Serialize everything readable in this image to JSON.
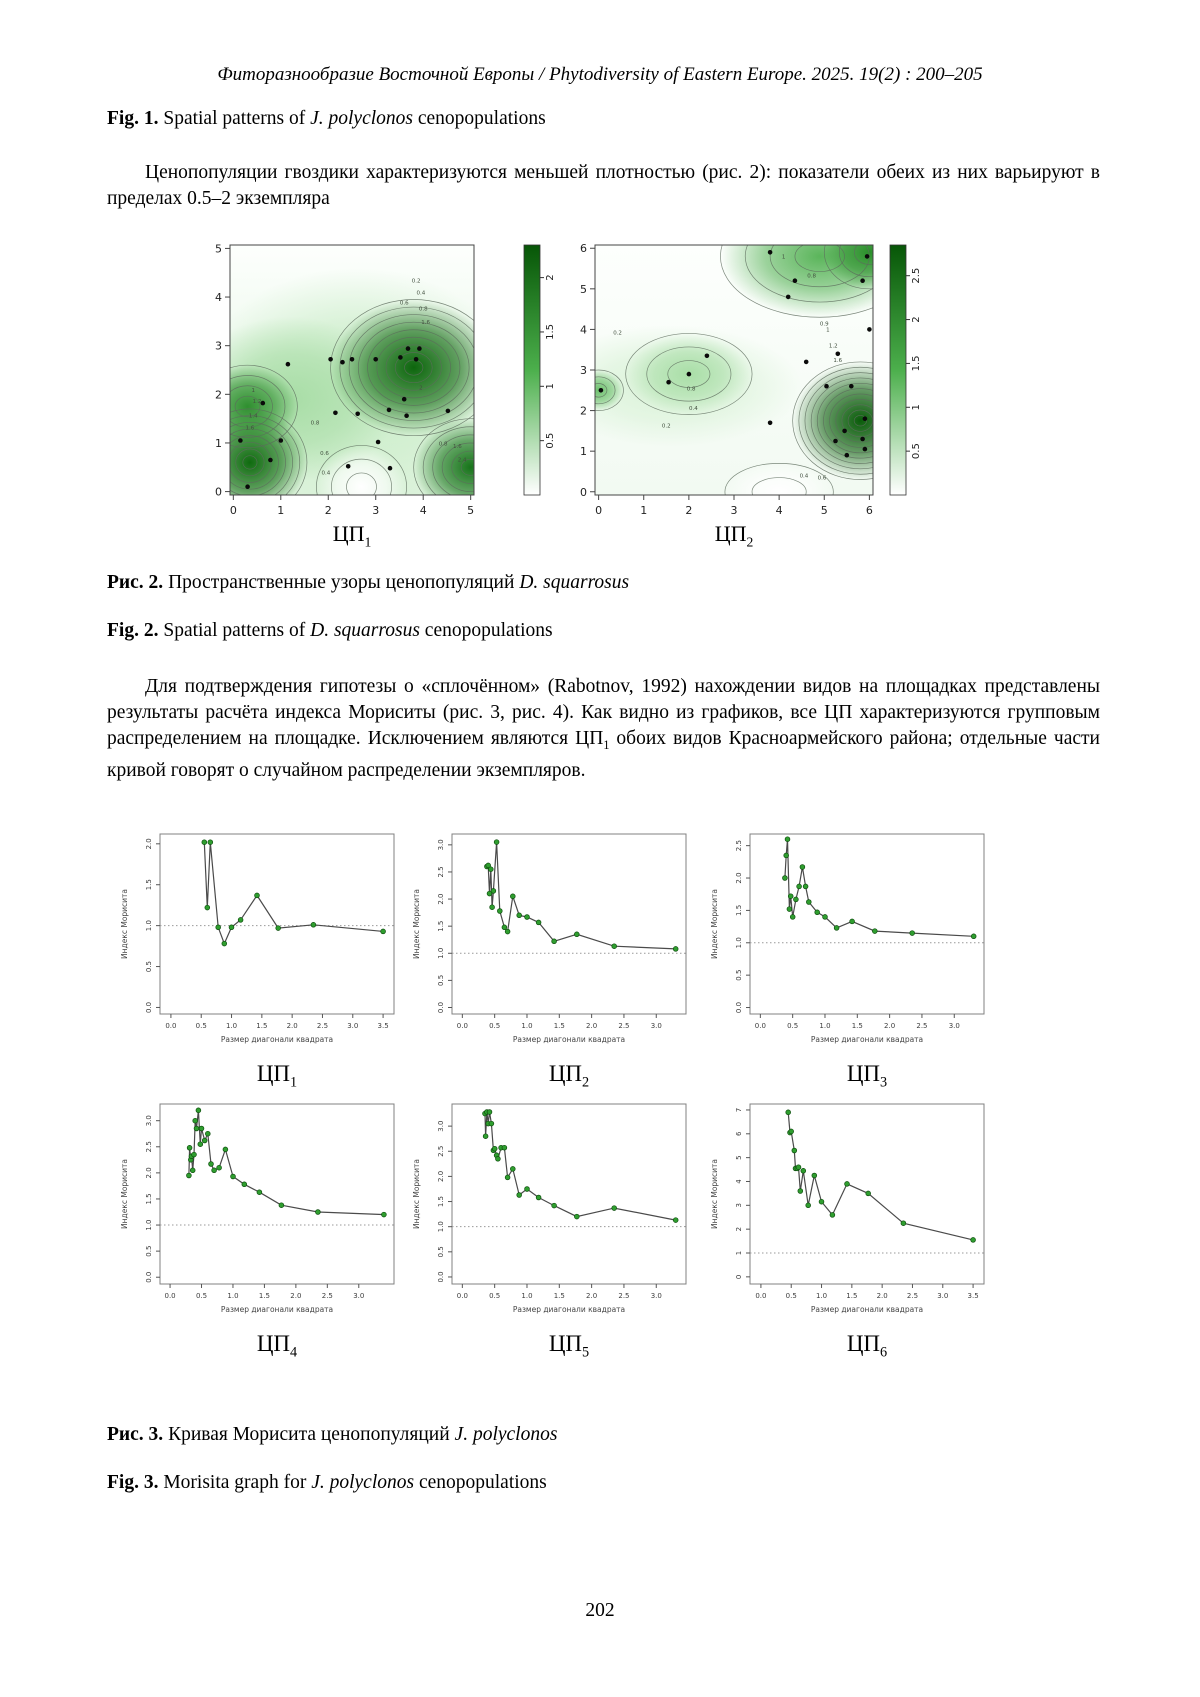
{
  "page": {
    "header": "Фиторазнообразие Восточной Европы / Phytodiversity of Eastern Europe. 2025. 19(2) : 200–205",
    "page_number": "202"
  },
  "captions": {
    "fig1_en": {
      "prefix": "Fig. 1.",
      "pre": " Spatial patterns of ",
      "italic": "J. polyclonos",
      "suffix": " cenopopulations"
    },
    "fig2_ru": {
      "prefix": "Рис. 2.",
      "pre": " Пространственные узоры ценопопуляций ",
      "italic": "D. squarrosus",
      "suffix": ""
    },
    "fig2_en": {
      "prefix": "Fig. 2.",
      "pre": " Spatial patterns of ",
      "italic": "D. squarrosus",
      "suffix": " cenopopulations"
    },
    "fig3_ru": {
      "prefix": "Рис. 3.",
      "pre": " Кривая Морисита ценопопуляций ",
      "italic": "J. polyclonos",
      "suffix": ""
    },
    "fig3_en": {
      "prefix": "Fig. 3.",
      "pre": " Morisita graph for ",
      "italic": "J. polyclonos",
      "suffix": " cenopopulations"
    }
  },
  "paragraphs": {
    "p1": "Ценопопуляции гвоздики характеризуются меньшей плотностью (рис. 2): показатели обеих из них варьируют в пределах 0.5–2 экземпляра",
    "p2a": "Для подтверждения гипотезы о «сплочённом» (Rabotnov, 1992) нахождении видов на площадках представлены результаты расчёта индекса Мориситы (рис. 3, рис. 4). Как видно из графиков, все ЦП характеризуются групповым распределением на площадке. Исключением являются ЦП",
    "p2sub": "1",
    "p2b": " обоих видов Красноармейского района; отдельные части кривой говорят о случайном распределении экземпляров."
  },
  "chart_data": [
    {
      "id": "cpa",
      "type": "heatmap",
      "subtype": "contour-density",
      "title": {
        "base": "ЦП",
        "sub": "1"
      },
      "xlim": [
        -0.07,
        5.07
      ],
      "ylim": [
        -0.07,
        5.07
      ],
      "xticks": [
        0,
        1,
        2,
        3,
        4,
        5
      ],
      "yticks": [
        0,
        1,
        2,
        3,
        4,
        5
      ],
      "colorbar_ticks": [
        0.5,
        1,
        1.5,
        2
      ],
      "colorbar_max": 2.3,
      "colorbar_colors": [
        "#ffffff",
        "#4caf4c",
        "#075607"
      ],
      "base_top": "#fdfffd",
      "base_bottom": "#ddf3dc",
      "points": [
        [
          0.15,
          1.05
        ],
        [
          0.3,
          0.1
        ],
        [
          0.78,
          0.65
        ],
        [
          1.0,
          1.05
        ],
        [
          0.62,
          1.82
        ],
        [
          1.15,
          2.62
        ],
        [
          2.05,
          2.72
        ],
        [
          2.3,
          2.66
        ],
        [
          2.5,
          2.72
        ],
        [
          2.15,
          1.62
        ],
        [
          2.42,
          0.52
        ],
        [
          3.0,
          2.72
        ],
        [
          3.28,
          1.68
        ],
        [
          3.05,
          1.02
        ],
        [
          3.3,
          0.48
        ],
        [
          3.52,
          2.76
        ],
        [
          3.68,
          2.94
        ],
        [
          3.92,
          2.94
        ],
        [
          3.85,
          2.72
        ],
        [
          3.6,
          1.9
        ],
        [
          3.65,
          1.56
        ],
        [
          4.52,
          1.66
        ],
        [
          2.62,
          1.6
        ]
      ],
      "blobs": [
        {
          "cx": 2.6,
          "cy": 2.1,
          "rx": 3.4,
          "ry": 2.5,
          "color": "#c9ecc7",
          "rings": 0
        },
        {
          "cx": 1.2,
          "cy": 1.9,
          "rx": 2.3,
          "ry": 1.7,
          "color": "#a8dda6",
          "rings": 0
        },
        {
          "cx": 3.8,
          "cy": 2.55,
          "rx": 1.75,
          "ry": 1.4,
          "color": "#0d660d",
          "rings": 9
        },
        {
          "cx": 0.35,
          "cy": 0.6,
          "rx": 1.2,
          "ry": 1.1,
          "color": "#0f6b0f",
          "rings": 8
        },
        {
          "cx": 0.3,
          "cy": 1.75,
          "rx": 1.05,
          "ry": 0.85,
          "color": "#2f8f2f",
          "rings": 4
        },
        {
          "cx": 5.0,
          "cy": 0.5,
          "rx": 1.2,
          "ry": 1.0,
          "color": "#17741a",
          "rings": 6
        },
        {
          "cx": 2.7,
          "cy": 0.1,
          "rx": 0.95,
          "ry": 0.85,
          "color": "#ffffff",
          "rings": 3
        }
      ],
      "ring_labels": [
        {
          "t": "0.2",
          "x": 3.85,
          "y": 4.3
        },
        {
          "t": "0.4",
          "x": 3.95,
          "y": 4.05
        },
        {
          "t": "0.6",
          "x": 3.6,
          "y": 3.85
        },
        {
          "t": "0.8",
          "x": 4.0,
          "y": 3.72
        },
        {
          "t": "1.6",
          "x": 4.05,
          "y": 3.45
        },
        {
          "t": "1",
          "x": 0.42,
          "y": 2.05
        },
        {
          "t": "1.2",
          "x": 0.5,
          "y": 1.82
        },
        {
          "t": "1.4",
          "x": 0.42,
          "y": 1.52
        },
        {
          "t": "1.6",
          "x": 0.35,
          "y": 1.28
        },
        {
          "t": "0.8",
          "x": 1.72,
          "y": 1.38
        },
        {
          "t": "0.6",
          "x": 1.92,
          "y": 0.75
        },
        {
          "t": "0.4",
          "x": 1.95,
          "y": 0.35
        },
        {
          "t": "0.8",
          "x": 4.42,
          "y": 0.95
        },
        {
          "t": "1.6",
          "x": 4.72,
          "y": 0.9
        },
        {
          "t": "2.4",
          "x": 4.82,
          "y": 0.62
        },
        {
          "t": "2",
          "x": 3.95,
          "y": 2.1
        }
      ]
    },
    {
      "id": "cpb",
      "type": "heatmap",
      "subtype": "contour-density",
      "title": {
        "base": "ЦП",
        "sub": "2"
      },
      "xlim": [
        -0.08,
        6.08
      ],
      "ylim": [
        -0.08,
        6.08
      ],
      "xticks": [
        0,
        1,
        2,
        3,
        4,
        5,
        6
      ],
      "yticks": [
        0,
        1,
        2,
        3,
        4,
        5,
        6
      ],
      "colorbar_ticks": [
        0.5,
        1,
        1.5,
        2,
        2.5
      ],
      "colorbar_max": 2.85,
      "colorbar_colors": [
        "#ffffff",
        "#4caf4c",
        "#075607"
      ],
      "base_top": "#fdfffd",
      "base_bottom": "#f2faf2",
      "points": [
        [
          3.8,
          5.9
        ],
        [
          4.35,
          5.2
        ],
        [
          4.2,
          4.8
        ],
        [
          2.4,
          3.35
        ],
        [
          2.0,
          2.9
        ],
        [
          1.55,
          2.7
        ],
        [
          0.05,
          2.5
        ],
        [
          4.6,
          3.2
        ],
        [
          3.8,
          1.7
        ],
        [
          5.3,
          3.4
        ],
        [
          5.05,
          2.6
        ],
        [
          5.6,
          2.6
        ],
        [
          5.9,
          1.8
        ],
        [
          5.45,
          1.5
        ],
        [
          5.25,
          1.25
        ],
        [
          5.85,
          1.3
        ],
        [
          5.95,
          5.8
        ],
        [
          5.85,
          5.2
        ],
        [
          5.5,
          0.9
        ],
        [
          6.0,
          4.0
        ],
        [
          5.9,
          1.05
        ]
      ],
      "blobs": [
        {
          "cx": 1.6,
          "cy": 2.6,
          "rx": 2.9,
          "ry": 1.5,
          "color": "#d9f2d7",
          "rings": 0
        },
        {
          "cx": 2.0,
          "cy": 2.9,
          "rx": 1.4,
          "ry": 1.0,
          "color": "#a9dea7",
          "rings": 3
        },
        {
          "cx": 0.0,
          "cy": 2.5,
          "rx": 0.55,
          "ry": 0.5,
          "color": "#6fc16f",
          "rings": 3
        },
        {
          "cx": 4.9,
          "cy": 5.8,
          "rx": 2.2,
          "ry": 1.5,
          "color": "#5bb55b",
          "rings": 4
        },
        {
          "cx": 6.0,
          "cy": 5.9,
          "rx": 1.0,
          "ry": 0.9,
          "color": "#2a8f2a",
          "rings": 3
        },
        {
          "cx": 5.8,
          "cy": 1.75,
          "rx": 1.5,
          "ry": 1.45,
          "color": "#0a5c0a",
          "rings": 11
        },
        {
          "cx": 4.0,
          "cy": 0.0,
          "rx": 1.2,
          "ry": 0.7,
          "color": "#ffffff",
          "rings": 2
        }
      ],
      "ring_labels": [
        {
          "t": "0.2",
          "x": 0.42,
          "y": 3.88
        },
        {
          "t": "0.8",
          "x": 2.05,
          "y": 2.5
        },
        {
          "t": "0.4",
          "x": 2.1,
          "y": 2.02
        },
        {
          "t": "0.2",
          "x": 1.5,
          "y": 1.58
        },
        {
          "t": "0.8",
          "x": 4.72,
          "y": 5.28
        },
        {
          "t": "1",
          "x": 4.1,
          "y": 5.75
        },
        {
          "t": "0.9",
          "x": 5.0,
          "y": 4.1
        },
        {
          "t": "1",
          "x": 5.08,
          "y": 3.95
        },
        {
          "t": "1.2",
          "x": 5.2,
          "y": 3.55
        },
        {
          "t": "0.4",
          "x": 4.55,
          "y": 0.35
        },
        {
          "t": "0.6",
          "x": 4.95,
          "y": 0.3
        },
        {
          "t": "1.6",
          "x": 5.3,
          "y": 3.2
        }
      ]
    },
    {
      "id": "m1",
      "type": "line",
      "title": {
        "base": "ЦП",
        "sub": "1"
      },
      "xlabel": "Размер диагонали квадрата",
      "ylabel": "Индекс Морисита",
      "xlim": [
        -0.18,
        3.68
      ],
      "ylim": [
        -0.08,
        2.12
      ],
      "refline": 1.0,
      "xticks": [
        0,
        0.5,
        1,
        1.5,
        2,
        2.5,
        3,
        3.5
      ],
      "xtick_labels": [
        "0.0",
        "0.5",
        "1.0",
        "1.5",
        "2.0",
        "2.5",
        "3.0",
        "3.5"
      ],
      "yticks": [
        0,
        0.5,
        1,
        1.5,
        2
      ],
      "ytick_labels": [
        "0.0",
        "0.5",
        "1.0",
        "1.5",
        "2.0"
      ],
      "x": [
        0.55,
        0.6,
        0.65,
        0.78,
        0.88,
        1.0,
        1.15,
        1.42,
        1.77,
        2.35,
        3.5
      ],
      "y": [
        2.02,
        1.22,
        2.02,
        0.98,
        0.78,
        0.98,
        1.07,
        1.37,
        0.97,
        1.01,
        0.93
      ],
      "point_color": "#2f9e2f",
      "line_color": "#4a4a4a"
    },
    {
      "id": "m2",
      "type": "line",
      "title": {
        "base": "ЦП",
        "sub": "2"
      },
      "xlabel": "Размер диагонали квадрата",
      "ylabel": "Индекс Морисита",
      "xlim": [
        -0.16,
        3.46
      ],
      "ylim": [
        -0.12,
        3.2
      ],
      "refline": 1.0,
      "xticks": [
        0,
        0.5,
        1,
        1.5,
        2,
        2.5,
        3
      ],
      "xtick_labels": [
        "0.0",
        "0.5",
        "1.0",
        "1.5",
        "2.0",
        "2.5",
        "3.0"
      ],
      "yticks": [
        0,
        0.5,
        1,
        1.5,
        2,
        2.5,
        3
      ],
      "ytick_labels": [
        "0.0",
        "0.5",
        "1.0",
        "1.5",
        "2.0",
        "2.5",
        "3.0"
      ],
      "x": [
        0.38,
        0.4,
        0.42,
        0.44,
        0.46,
        0.48,
        0.53,
        0.58,
        0.65,
        0.7,
        0.78,
        0.88,
        1.0,
        1.18,
        1.42,
        1.77,
        2.35,
        3.3
      ],
      "y": [
        2.6,
        2.62,
        2.1,
        2.55,
        1.85,
        2.15,
        3.05,
        1.78,
        1.48,
        1.4,
        2.05,
        1.7,
        1.67,
        1.57,
        1.22,
        1.35,
        1.13,
        1.08
      ],
      "point_color": "#2f9e2f",
      "line_color": "#4a4a4a"
    },
    {
      "id": "m3",
      "type": "line",
      "title": {
        "base": "ЦП",
        "sub": "3"
      },
      "xlabel": "Размер диагонали квадрата",
      "ylabel": "Индекс Морисита",
      "xlim": [
        -0.16,
        3.46
      ],
      "ylim": [
        -0.1,
        2.68
      ],
      "refline": 1.0,
      "xticks": [
        0,
        0.5,
        1,
        1.5,
        2,
        2.5,
        3
      ],
      "xtick_labels": [
        "0.0",
        "0.5",
        "1.0",
        "1.5",
        "2.0",
        "2.5",
        "3.0"
      ],
      "yticks": [
        0,
        0.5,
        1,
        1.5,
        2,
        2.5
      ],
      "ytick_labels": [
        "0.0",
        "0.5",
        "1.0",
        "1.5",
        "2.0",
        "2.5"
      ],
      "x": [
        0.38,
        0.4,
        0.42,
        0.45,
        0.47,
        0.5,
        0.55,
        0.6,
        0.65,
        0.7,
        0.75,
        0.88,
        1.0,
        1.18,
        1.42,
        1.77,
        2.35,
        3.3
      ],
      "y": [
        2.0,
        2.35,
        2.6,
        1.52,
        1.72,
        1.4,
        1.67,
        1.87,
        2.17,
        1.87,
        1.63,
        1.47,
        1.4,
        1.23,
        1.33,
        1.18,
        1.15,
        1.1
      ],
      "point_color": "#2f9e2f",
      "line_color": "#4a4a4a"
    },
    {
      "id": "m4",
      "type": "line",
      "title": {
        "base": "ЦП",
        "sub": "4"
      },
      "xlabel": "Размер диагонали квадрата",
      "ylabel": "Индекс Морисита",
      "xlim": [
        -0.16,
        3.56
      ],
      "ylim": [
        -0.13,
        3.32
      ],
      "refline": 1.0,
      "xticks": [
        0,
        0.5,
        1,
        1.5,
        2,
        2.5,
        3
      ],
      "xtick_labels": [
        "0.0",
        "0.5",
        "1.0",
        "1.5",
        "2.0",
        "2.5",
        "3.0"
      ],
      "yticks": [
        0,
        0.5,
        1,
        1.5,
        2,
        2.5,
        3
      ],
      "ytick_labels": [
        "0.0",
        "0.5",
        "1.0",
        "1.5",
        "2.0",
        "2.5",
        "3.0"
      ],
      "x": [
        0.3,
        0.31,
        0.33,
        0.34,
        0.36,
        0.38,
        0.4,
        0.42,
        0.45,
        0.48,
        0.5,
        0.55,
        0.6,
        0.65,
        0.7,
        0.78,
        0.88,
        1.0,
        1.18,
        1.42,
        1.77,
        2.35,
        3.4
      ],
      "y": [
        1.95,
        2.48,
        2.25,
        2.32,
        2.05,
        2.35,
        3.0,
        2.85,
        3.2,
        2.55,
        2.85,
        2.62,
        2.75,
        2.17,
        2.05,
        2.1,
        2.45,
        1.93,
        1.78,
        1.63,
        1.38,
        1.25,
        1.2
      ],
      "point_color": "#2f9e2f",
      "line_color": "#4a4a4a"
    },
    {
      "id": "m5",
      "type": "line",
      "title": {
        "base": "ЦП",
        "sub": "5"
      },
      "xlabel": "Размер диагонали квадрата",
      "ylabel": "Индекс Морисита",
      "xlim": [
        -0.16,
        3.46
      ],
      "ylim": [
        -0.14,
        3.44
      ],
      "refline": 1.0,
      "xticks": [
        0,
        0.5,
        1,
        1.5,
        2,
        2.5,
        3
      ],
      "xtick_labels": [
        "0.0",
        "0.5",
        "1.0",
        "1.5",
        "2.0",
        "2.5",
        "3.0"
      ],
      "yticks": [
        0,
        0.5,
        1,
        1.5,
        2,
        2.5,
        3
      ],
      "ytick_labels": [
        "0.0",
        "0.5",
        "1.0",
        "1.5",
        "2.0",
        "2.5",
        "3.0"
      ],
      "x": [
        0.35,
        0.36,
        0.38,
        0.4,
        0.42,
        0.45,
        0.48,
        0.5,
        0.53,
        0.55,
        0.6,
        0.65,
        0.7,
        0.78,
        0.88,
        1.0,
        1.18,
        1.42,
        1.77,
        2.35,
        3.3
      ],
      "y": [
        3.25,
        2.8,
        3.28,
        3.05,
        3.28,
        3.05,
        2.52,
        2.55,
        2.42,
        2.35,
        2.57,
        2.57,
        1.98,
        2.15,
        1.63,
        1.75,
        1.58,
        1.42,
        1.2,
        1.37,
        1.13
      ],
      "point_color": "#2f9e2f",
      "line_color": "#4a4a4a"
    },
    {
      "id": "m6",
      "type": "line",
      "title": {
        "base": "ЦП",
        "sub": "6"
      },
      "xlabel": "Размер диагонали квадрата",
      "ylabel": "Индекс Морисита",
      "xlim": [
        -0.18,
        3.68
      ],
      "ylim": [
        -0.3,
        7.25
      ],
      "refline": 1.0,
      "xticks": [
        0,
        0.5,
        1,
        1.5,
        2,
        2.5,
        3,
        3.5
      ],
      "xtick_labels": [
        "0.0",
        "0.5",
        "1.0",
        "1.5",
        "2.0",
        "2.5",
        "3.0",
        "3.5"
      ],
      "yticks": [
        0,
        1,
        2,
        3,
        4,
        5,
        6,
        7
      ],
      "ytick_labels": [
        "0",
        "1",
        "2",
        "3",
        "4",
        "5",
        "6",
        "7"
      ],
      "x": [
        0.45,
        0.48,
        0.5,
        0.55,
        0.57,
        0.6,
        0.62,
        0.65,
        0.7,
        0.78,
        0.88,
        1.0,
        1.18,
        1.42,
        1.77,
        2.35,
        3.5
      ],
      "y": [
        6.9,
        6.05,
        6.1,
        5.3,
        4.55,
        4.55,
        4.6,
        3.6,
        4.45,
        3.0,
        4.25,
        3.15,
        2.6,
        3.9,
        3.5,
        2.25,
        1.55
      ],
      "point_color": "#2f9e2f",
      "line_color": "#4a4a4a"
    }
  ]
}
